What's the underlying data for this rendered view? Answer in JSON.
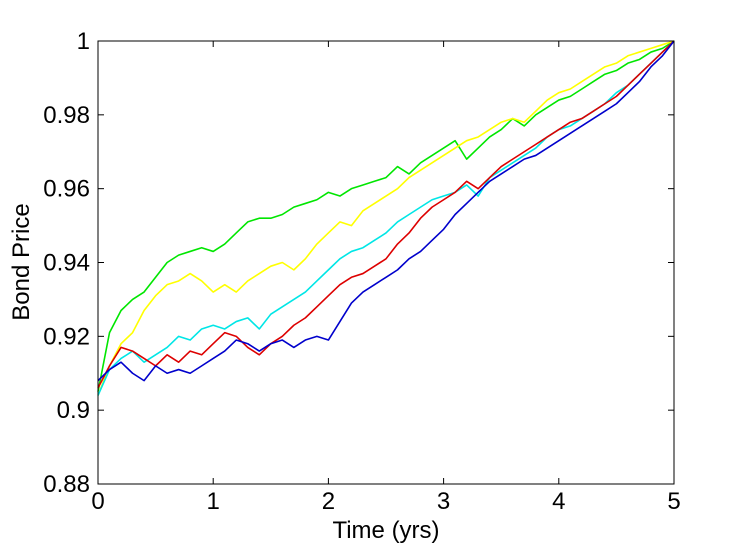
{
  "chart_data": {
    "type": "line",
    "xlabel": "Time (yrs)",
    "ylabel": "Bond Price",
    "xlim": [
      0,
      5
    ],
    "ylim": [
      0.88,
      1.0
    ],
    "xticks": [
      "0",
      "1",
      "2",
      "3",
      "4",
      "5"
    ],
    "yticks": [
      "0.88",
      "0.9",
      "0.92",
      "0.94",
      "0.96",
      "0.98",
      "1"
    ],
    "grid": false,
    "series": [
      {
        "color": "#00e600",
        "x": [
          0,
          0.1,
          0.2,
          0.3,
          0.4,
          0.5,
          0.6,
          0.7,
          0.8,
          0.9,
          1.0,
          1.1,
          1.2,
          1.3,
          1.4,
          1.5,
          1.6,
          1.7,
          1.8,
          1.9,
          2.0,
          2.1,
          2.2,
          2.3,
          2.4,
          2.5,
          2.6,
          2.7,
          2.8,
          2.9,
          3.0,
          3.1,
          3.2,
          3.3,
          3.4,
          3.5,
          3.6,
          3.7,
          3.8,
          3.9,
          4.0,
          4.1,
          4.2,
          4.3,
          4.4,
          4.5,
          4.6,
          4.7,
          4.8,
          4.9,
          5.0
        ],
        "y": [
          0.905,
          0.921,
          0.927,
          0.93,
          0.932,
          0.936,
          0.94,
          0.942,
          0.943,
          0.944,
          0.943,
          0.945,
          0.948,
          0.951,
          0.952,
          0.952,
          0.953,
          0.955,
          0.956,
          0.957,
          0.959,
          0.958,
          0.96,
          0.961,
          0.962,
          0.963,
          0.966,
          0.964,
          0.967,
          0.969,
          0.971,
          0.973,
          0.968,
          0.971,
          0.974,
          0.976,
          0.979,
          0.977,
          0.98,
          0.982,
          0.984,
          0.985,
          0.987,
          0.989,
          0.991,
          0.992,
          0.994,
          0.995,
          0.997,
          0.998,
          1.0
        ]
      },
      {
        "color": "#ffff00",
        "x": [
          0,
          0.1,
          0.2,
          0.3,
          0.4,
          0.5,
          0.6,
          0.7,
          0.8,
          0.9,
          1.0,
          1.1,
          1.2,
          1.3,
          1.4,
          1.5,
          1.6,
          1.7,
          1.8,
          1.9,
          2.0,
          2.1,
          2.2,
          2.3,
          2.4,
          2.5,
          2.6,
          2.7,
          2.8,
          2.9,
          3.0,
          3.1,
          3.2,
          3.3,
          3.4,
          3.5,
          3.6,
          3.7,
          3.8,
          3.9,
          4.0,
          4.1,
          4.2,
          4.3,
          4.4,
          4.5,
          4.6,
          4.7,
          4.8,
          4.9,
          5.0
        ],
        "y": [
          0.904,
          0.912,
          0.918,
          0.921,
          0.927,
          0.931,
          0.934,
          0.935,
          0.937,
          0.935,
          0.932,
          0.934,
          0.932,
          0.935,
          0.937,
          0.939,
          0.94,
          0.938,
          0.941,
          0.945,
          0.948,
          0.951,
          0.95,
          0.954,
          0.956,
          0.958,
          0.96,
          0.963,
          0.965,
          0.967,
          0.969,
          0.971,
          0.973,
          0.974,
          0.976,
          0.978,
          0.979,
          0.978,
          0.981,
          0.984,
          0.986,
          0.987,
          0.989,
          0.991,
          0.993,
          0.994,
          0.996,
          0.997,
          0.998,
          0.999,
          1.0
        ]
      },
      {
        "color": "#00e6e6",
        "x": [
          0,
          0.1,
          0.2,
          0.3,
          0.4,
          0.5,
          0.6,
          0.7,
          0.8,
          0.9,
          1.0,
          1.1,
          1.2,
          1.3,
          1.4,
          1.5,
          1.6,
          1.7,
          1.8,
          1.9,
          2.0,
          2.1,
          2.2,
          2.3,
          2.4,
          2.5,
          2.6,
          2.7,
          2.8,
          2.9,
          3.0,
          3.1,
          3.2,
          3.3,
          3.4,
          3.5,
          3.6,
          3.7,
          3.8,
          3.9,
          4.0,
          4.1,
          4.2,
          4.3,
          4.4,
          4.5,
          4.6,
          4.7,
          4.8,
          4.9,
          5.0
        ],
        "y": [
          0.904,
          0.911,
          0.914,
          0.916,
          0.913,
          0.915,
          0.917,
          0.92,
          0.919,
          0.922,
          0.923,
          0.922,
          0.924,
          0.925,
          0.922,
          0.926,
          0.928,
          0.93,
          0.932,
          0.935,
          0.938,
          0.941,
          0.943,
          0.944,
          0.946,
          0.948,
          0.951,
          0.953,
          0.955,
          0.957,
          0.958,
          0.959,
          0.961,
          0.958,
          0.963,
          0.965,
          0.967,
          0.969,
          0.971,
          0.974,
          0.976,
          0.977,
          0.979,
          0.981,
          0.983,
          0.986,
          0.988,
          0.991,
          0.994,
          0.997,
          1.0
        ]
      },
      {
        "color": "#dd0000",
        "x": [
          0,
          0.1,
          0.2,
          0.3,
          0.4,
          0.5,
          0.6,
          0.7,
          0.8,
          0.9,
          1.0,
          1.1,
          1.2,
          1.3,
          1.4,
          1.5,
          1.6,
          1.7,
          1.8,
          1.9,
          2.0,
          2.1,
          2.2,
          2.3,
          2.4,
          2.5,
          2.6,
          2.7,
          2.8,
          2.9,
          3.0,
          3.1,
          3.2,
          3.3,
          3.4,
          3.5,
          3.6,
          3.7,
          3.8,
          3.9,
          4.0,
          4.1,
          4.2,
          4.3,
          4.4,
          4.5,
          4.6,
          4.7,
          4.8,
          4.9,
          5.0
        ],
        "y": [
          0.906,
          0.912,
          0.917,
          0.916,
          0.914,
          0.912,
          0.915,
          0.913,
          0.916,
          0.915,
          0.918,
          0.921,
          0.92,
          0.917,
          0.915,
          0.918,
          0.92,
          0.923,
          0.925,
          0.928,
          0.931,
          0.934,
          0.936,
          0.937,
          0.939,
          0.941,
          0.945,
          0.948,
          0.952,
          0.955,
          0.957,
          0.959,
          0.962,
          0.96,
          0.963,
          0.966,
          0.968,
          0.97,
          0.972,
          0.974,
          0.976,
          0.978,
          0.979,
          0.981,
          0.983,
          0.985,
          0.988,
          0.991,
          0.994,
          0.997,
          1.0
        ]
      },
      {
        "color": "#0000cc",
        "x": [
          0,
          0.1,
          0.2,
          0.3,
          0.4,
          0.5,
          0.6,
          0.7,
          0.8,
          0.9,
          1.0,
          1.1,
          1.2,
          1.3,
          1.4,
          1.5,
          1.6,
          1.7,
          1.8,
          1.9,
          2.0,
          2.1,
          2.2,
          2.3,
          2.4,
          2.5,
          2.6,
          2.7,
          2.8,
          2.9,
          3.0,
          3.1,
          3.2,
          3.3,
          3.4,
          3.5,
          3.6,
          3.7,
          3.8,
          3.9,
          4.0,
          4.1,
          4.2,
          4.3,
          4.4,
          4.5,
          4.6,
          4.7,
          4.8,
          4.9,
          5.0
        ],
        "y": [
          0.908,
          0.911,
          0.913,
          0.91,
          0.908,
          0.912,
          0.91,
          0.911,
          0.91,
          0.912,
          0.914,
          0.916,
          0.919,
          0.918,
          0.916,
          0.918,
          0.919,
          0.917,
          0.919,
          0.92,
          0.919,
          0.924,
          0.929,
          0.932,
          0.934,
          0.936,
          0.938,
          0.941,
          0.943,
          0.946,
          0.949,
          0.953,
          0.956,
          0.959,
          0.962,
          0.964,
          0.966,
          0.968,
          0.969,
          0.971,
          0.973,
          0.975,
          0.977,
          0.979,
          0.981,
          0.983,
          0.986,
          0.989,
          0.993,
          0.996,
          1.0
        ]
      }
    ]
  }
}
